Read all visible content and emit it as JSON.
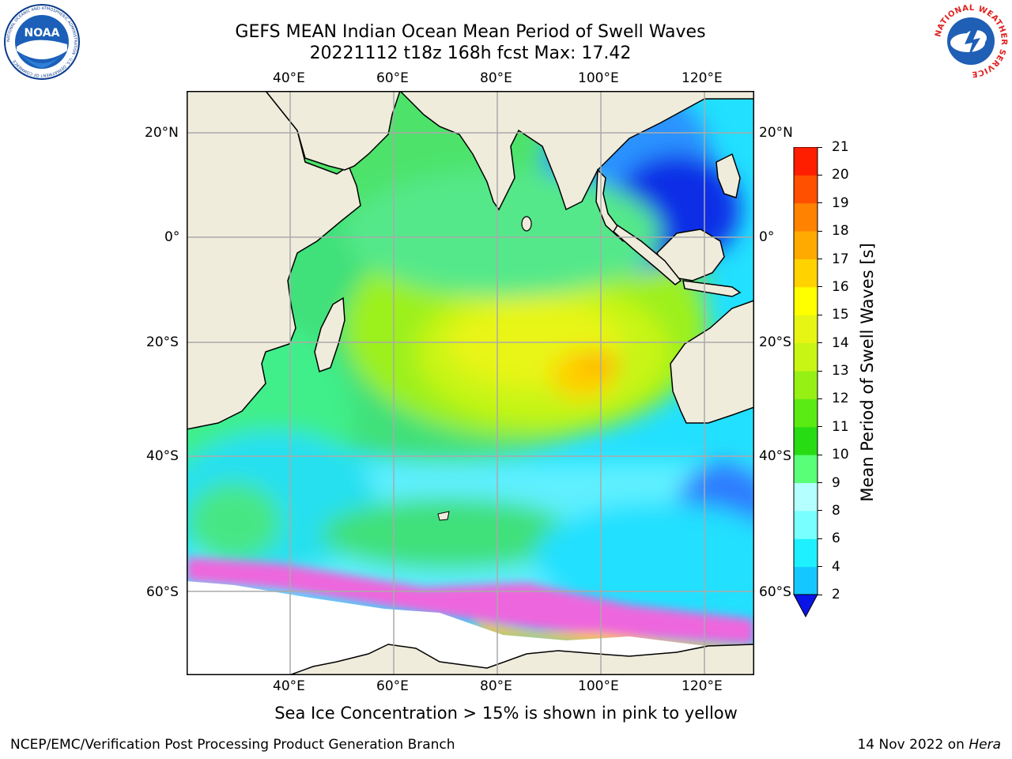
{
  "header": {
    "title_line1": "GEFS MEAN Indian Ocean Mean Period of Swell Waves",
    "title_line2": "20221112 t18z 168h fcst   Max: 17.42"
  },
  "logos": {
    "left": {
      "name": "noaa-logo",
      "text": "NOAA",
      "ring_text": "NATIONAL OCEANIC AND ATMOSPHERIC ADMINISTRATION · U.S. DEPARTMENT OF COMMERCE"
    },
    "right": {
      "name": "nws-logo",
      "ring_text": "NATIONAL WEATHER SERVICE"
    }
  },
  "map": {
    "top_lon_labels": [
      "40°E",
      "60°E",
      "80°E",
      "100°E",
      "120°E"
    ],
    "bottom_lon_labels": [
      "40°E",
      "60°E",
      "80°E",
      "100°E",
      "120°E"
    ],
    "left_lat_labels": [
      "20°N",
      "0°",
      "20°S",
      "40°S",
      "60°S"
    ],
    "right_lat_labels": [
      "20°N",
      "0°",
      "20°S",
      "40°S",
      "60°S"
    ],
    "colors": {
      "land": "#efecdc",
      "grid": "#aaaaaa",
      "ice_pink": "#ee66dd",
      "ice_yellow": "#f5c242"
    }
  },
  "colorbar": {
    "label": "Mean Period of Swell Waves [s]",
    "ticks": [
      "2",
      "4",
      "6",
      "8",
      "9",
      "10",
      "11",
      "12",
      "13",
      "14",
      "15",
      "16",
      "17",
      "18",
      "19",
      "20",
      "21"
    ],
    "colors": [
      "#0a64ff",
      "#14c8ff",
      "#1ef0ff",
      "#78ffff",
      "#b4ffff",
      "#5aff78",
      "#28dc14",
      "#5aeb14",
      "#96f014",
      "#c8f514",
      "#e6f514",
      "#ffff00",
      "#ffd200",
      "#ffaa00",
      "#ff8200",
      "#ff5000",
      "#ff1e00"
    ],
    "underflow_color": "#0a14e6"
  },
  "caption": "Sea Ice Concentration > 15% is shown in pink to yellow",
  "footer": {
    "left": "NCEP/EMC/Verification Post Processing Product Generation Branch",
    "right_date": "14 Nov 2022 on ",
    "right_host": "Hera"
  }
}
